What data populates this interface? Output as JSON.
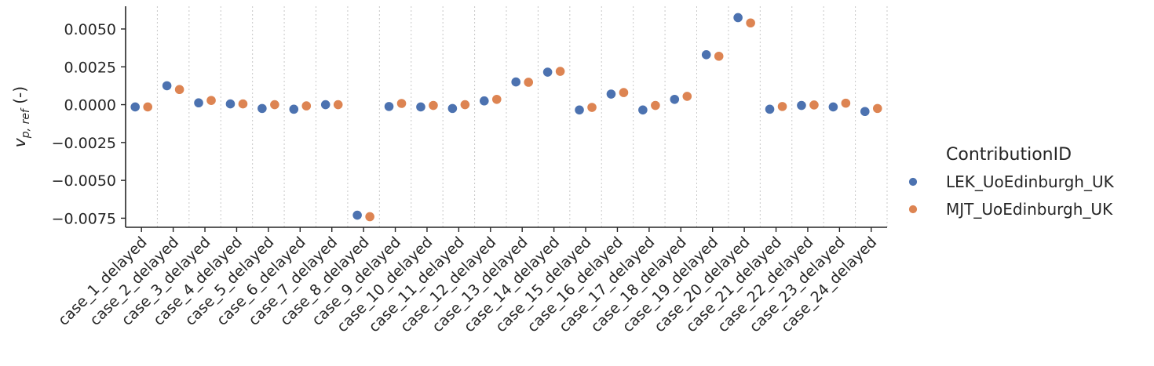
{
  "chart_data": {
    "type": "scatter",
    "ylabel_main": "v",
    "ylabel_sub": "p, ref",
    "ylabel_suffix": " (-)",
    "ylim": [
      -0.0081,
      0.0065
    ],
    "yticks": [
      0.005,
      0.0025,
      0.0,
      -0.0025,
      -0.005,
      -0.0075
    ],
    "ytick_labels": [
      "0.0050",
      "0.0025",
      "0.0000",
      "−0.0025",
      "−0.0050",
      "−0.0075"
    ],
    "categories": [
      "case_1_delayed",
      "case_2_delayed",
      "case_3_delayed",
      "case_4_delayed",
      "case_5_delayed",
      "case_6_delayed",
      "case_7_delayed",
      "case_8_delayed",
      "case_9_delayed",
      "case_10_delayed",
      "case_11_delayed",
      "case_12_delayed",
      "case_13_delayed",
      "case_14_delayed",
      "case_15_delayed",
      "case_16_delayed",
      "case_17_delayed",
      "case_18_delayed",
      "case_19_delayed",
      "case_20_delayed",
      "case_21_delayed",
      "case_22_delayed",
      "case_23_delayed",
      "case_24_delayed"
    ],
    "legend_title": "ContributionID",
    "legend_position": "right",
    "grid": "vertical dotted separators between categories",
    "series": [
      {
        "name": "LEK_UoEdinburgh_UK",
        "color": "#4c72b0",
        "values": [
          -0.00015,
          0.00125,
          0.00012,
          5e-05,
          -0.00025,
          -0.0003,
          0.0,
          -0.0073,
          -0.00012,
          -0.00015,
          -0.00025,
          0.00025,
          0.0015,
          0.00215,
          -0.00035,
          0.0007,
          -0.00035,
          0.00035,
          0.0033,
          0.00575,
          -0.0003,
          -5e-05,
          -0.00015,
          -0.00045
        ]
      },
      {
        "name": "MJT_UoEdinburgh_UK",
        "color": "#dd8452",
        "values": [
          -0.00015,
          0.001,
          0.00028,
          5e-05,
          0.0,
          -8e-05,
          0.0,
          -0.0074,
          8e-05,
          -5e-05,
          0.0,
          0.00035,
          0.00148,
          0.0022,
          -0.00018,
          0.0008,
          -5e-05,
          0.00055,
          0.0032,
          0.0054,
          -0.00012,
          -2e-05,
          0.0001,
          -0.00025
        ]
      }
    ]
  }
}
